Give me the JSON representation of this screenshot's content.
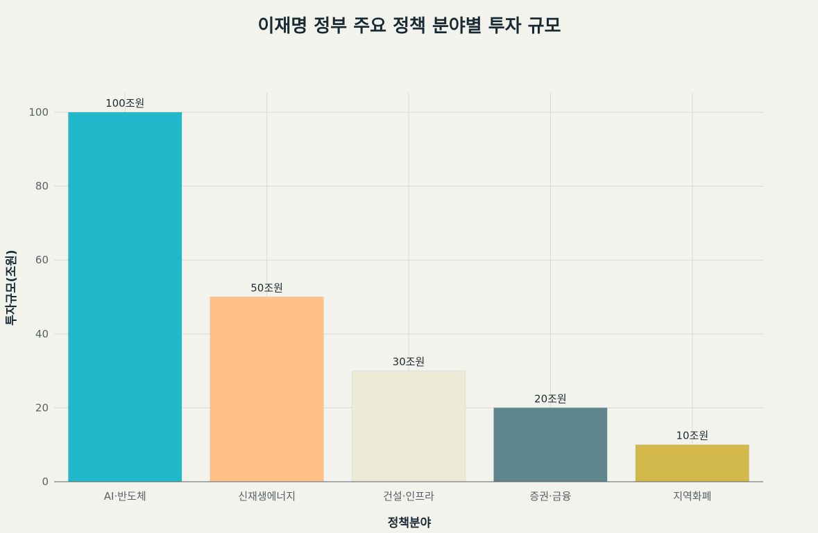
{
  "chart_data": {
    "type": "bar",
    "title": "이재명 정부 주요 정책 분야별 투자 규모",
    "xlabel": "정책분야",
    "ylabel": "투자규모(조원)",
    "categories": [
      "AI·반도체",
      "신재생에너지",
      "건설·인프라",
      "증권·금융",
      "지역화폐"
    ],
    "values": [
      100,
      50,
      30,
      20,
      10
    ],
    "data_labels": [
      "100조원",
      "50조원",
      "30조원",
      "20조원",
      "10조원"
    ],
    "colors": [
      "#21b8cc",
      "#ffc186",
      "#ecebd7",
      "#5e868c",
      "#d3b94c"
    ],
    "ylim": [
      0,
      100
    ],
    "yticks": [
      0,
      20,
      40,
      60,
      80,
      100
    ],
    "grid": true,
    "legend": "none"
  }
}
